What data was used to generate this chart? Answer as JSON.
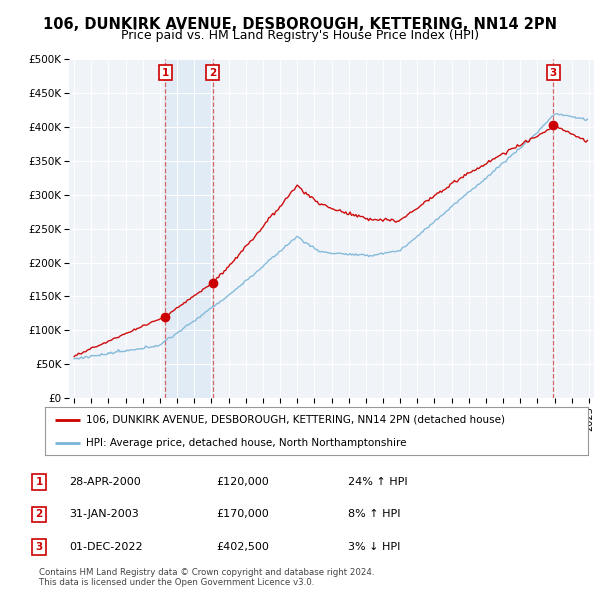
{
  "title": "106, DUNKIRK AVENUE, DESBOROUGH, KETTERING, NN14 2PN",
  "subtitle": "Price paid vs. HM Land Registry's House Price Index (HPI)",
  "ylabel_ticks": [
    "£0",
    "£50K",
    "£100K",
    "£150K",
    "£200K",
    "£250K",
    "£300K",
    "£350K",
    "£400K",
    "£450K",
    "£500K"
  ],
  "ytick_values": [
    0,
    50000,
    100000,
    150000,
    200000,
    250000,
    300000,
    350000,
    400000,
    450000,
    500000
  ],
  "xlim_start": 1994.7,
  "xlim_end": 2025.3,
  "ylim_min": 0,
  "ylim_max": 500000,
  "hpi_color": "#7ab4d8",
  "price_color": "#cc0000",
  "background_color": "#f0f4f8",
  "grid_color": "#d8d8d8",
  "shade_color": "#dce8f5",
  "sale_points": [
    {
      "year": 2000.32,
      "price": 120000,
      "label": "1"
    },
    {
      "year": 2003.08,
      "price": 170000,
      "label": "2"
    },
    {
      "year": 2022.92,
      "price": 402500,
      "label": "3"
    }
  ],
  "legend_entries": [
    "106, DUNKIRK AVENUE, DESBOROUGH, KETTERING, NN14 2PN (detached house)",
    "HPI: Average price, detached house, North Northamptonshire"
  ],
  "table_data": [
    {
      "num": "1",
      "date": "28-APR-2000",
      "price": "£120,000",
      "hpi": "24% ↑ HPI"
    },
    {
      "num": "2",
      "date": "31-JAN-2003",
      "price": "£170,000",
      "hpi": "8% ↑ HPI"
    },
    {
      "num": "3",
      "date": "01-DEC-2022",
      "price": "£402,500",
      "hpi": "3% ↓ HPI"
    }
  ],
  "footnote": "Contains HM Land Registry data © Crown copyright and database right 2024.\nThis data is licensed under the Open Government Licence v3.0.",
  "title_fontsize": 10.5,
  "subtitle_fontsize": 9
}
